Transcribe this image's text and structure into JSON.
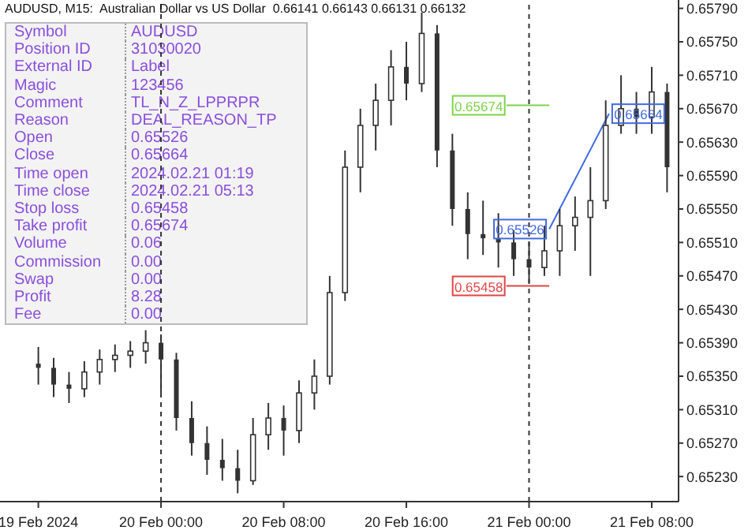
{
  "chart_data": {
    "type": "candlestick",
    "title": "AUDUSD, M15:  Australian Dollar vs US Dollar  0.66141 0.66143 0.66131 0.66132",
    "xlim": [
      "2024-02-19T13:30",
      "2024-02-21T09:45"
    ],
    "xticks": [
      {
        "value": "2024-02-19T16:00",
        "label": "19 Feb 2024"
      },
      {
        "value": "2024-02-20T00:00",
        "label": "20 Feb 00:00"
      },
      {
        "value": "2024-02-20T08:00",
        "label": "20 Feb 08:00"
      },
      {
        "value": "2024-02-20T16:00",
        "label": "20 Feb 16:00"
      },
      {
        "value": "2024-02-21T00:00",
        "label": "21 Feb 00:00"
      },
      {
        "value": "2024-02-21T08:00",
        "label": "21 Feb 08:00"
      }
    ],
    "ylim": [
      0.652,
      0.658
    ],
    "yticks": [
      {
        "value": 0.6523,
        "label": "0.65230"
      },
      {
        "value": 0.6527,
        "label": "0.65270"
      },
      {
        "value": 0.6531,
        "label": "0.65310"
      },
      {
        "value": 0.6535,
        "label": "0.65350"
      },
      {
        "value": 0.6539,
        "label": "0.65390"
      },
      {
        "value": 0.6543,
        "label": "0.65430"
      },
      {
        "value": 0.6547,
        "label": "0.65470"
      },
      {
        "value": 0.6551,
        "label": "0.65510"
      },
      {
        "value": 0.6555,
        "label": "0.65550"
      },
      {
        "value": 0.6559,
        "label": "0.65590"
      },
      {
        "value": 0.6563,
        "label": "0.65630"
      },
      {
        "value": 0.6567,
        "label": "0.65670"
      },
      {
        "value": 0.6571,
        "label": "0.65710"
      },
      {
        "value": 0.6575,
        "label": "0.65750"
      },
      {
        "value": 0.6579,
        "label": "0.65790"
      }
    ],
    "series": [
      {
        "color": "#333333",
        "x": [
          "2024-02-19T16:00",
          "2024-02-19T17:00",
          "2024-02-19T18:00",
          "2024-02-19T19:00",
          "2024-02-19T20:00",
          "2024-02-19T21:00",
          "2024-02-19T22:00",
          "2024-02-19T23:00",
          "2024-02-20T00:00",
          "2024-02-20T01:00",
          "2024-02-20T02:00",
          "2024-02-20T03:00",
          "2024-02-20T04:00",
          "2024-02-20T05:00",
          "2024-02-20T06:00",
          "2024-02-20T07:00",
          "2024-02-20T08:00",
          "2024-02-20T09:00",
          "2024-02-20T10:00",
          "2024-02-20T11:00",
          "2024-02-20T12:00",
          "2024-02-20T13:00",
          "2024-02-20T14:00",
          "2024-02-20T15:00",
          "2024-02-20T16:00",
          "2024-02-20T17:00",
          "2024-02-20T18:00",
          "2024-02-20T19:00",
          "2024-02-20T20:00",
          "2024-02-20T21:00",
          "2024-02-20T22:00",
          "2024-02-20T23:00",
          "2024-02-21T00:00",
          "2024-02-21T01:00",
          "2024-02-21T02:00",
          "2024-02-21T03:00",
          "2024-02-21T04:00",
          "2024-02-21T05:00",
          "2024-02-21T06:00",
          "2024-02-21T07:00",
          "2024-02-21T08:00",
          "2024-02-21T09:00"
        ],
        "ohlc": [
          [
            0.65365,
            0.65385,
            0.6534,
            0.6536
          ],
          [
            0.6536,
            0.65372,
            0.65325,
            0.6534
          ],
          [
            0.6534,
            0.65355,
            0.65318,
            0.65335
          ],
          [
            0.65335,
            0.65368,
            0.65325,
            0.65355
          ],
          [
            0.65355,
            0.65382,
            0.6534,
            0.6537
          ],
          [
            0.6537,
            0.65388,
            0.65355,
            0.65375
          ],
          [
            0.65375,
            0.65392,
            0.6536,
            0.6538
          ],
          [
            0.6538,
            0.65405,
            0.65365,
            0.6539
          ],
          [
            0.6539,
            0.654,
            0.6533,
            0.6537
          ],
          [
            0.6537,
            0.65378,
            0.65285,
            0.653
          ],
          [
            0.653,
            0.6532,
            0.65255,
            0.6527
          ],
          [
            0.6527,
            0.6529,
            0.65232,
            0.6525
          ],
          [
            0.6525,
            0.65275,
            0.65225,
            0.6524
          ],
          [
            0.6524,
            0.65262,
            0.6521,
            0.65225
          ],
          [
            0.65225,
            0.653,
            0.6522,
            0.6528
          ],
          [
            0.6528,
            0.65318,
            0.65262,
            0.653
          ],
          [
            0.653,
            0.65315,
            0.65255,
            0.65285
          ],
          [
            0.65285,
            0.65345,
            0.6527,
            0.6533
          ],
          [
            0.6533,
            0.6537,
            0.6531,
            0.6535
          ],
          [
            0.6535,
            0.6547,
            0.6534,
            0.6545
          ],
          [
            0.6545,
            0.6562,
            0.6544,
            0.656
          ],
          [
            0.656,
            0.6567,
            0.6557,
            0.6565
          ],
          [
            0.6565,
            0.657,
            0.6562,
            0.6568
          ],
          [
            0.6568,
            0.6574,
            0.6565,
            0.6572
          ],
          [
            0.6572,
            0.6575,
            0.6568,
            0.657
          ],
          [
            0.657,
            0.65785,
            0.6569,
            0.6576
          ],
          [
            0.6576,
            0.6577,
            0.656,
            0.6562
          ],
          [
            0.6562,
            0.6564,
            0.6553,
            0.6555
          ],
          [
            0.6555,
            0.6557,
            0.6549,
            0.6552
          ],
          [
            0.6552,
            0.6556,
            0.65495,
            0.65515
          ],
          [
            0.65515,
            0.65545,
            0.6548,
            0.6551
          ],
          [
            0.6551,
            0.65525,
            0.6547,
            0.6549
          ],
          [
            0.6549,
            0.6551,
            0.65462,
            0.6548
          ],
          [
            0.6548,
            0.6553,
            0.6547,
            0.655
          ],
          [
            0.655,
            0.6555,
            0.6547,
            0.6553
          ],
          [
            0.6553,
            0.65565,
            0.655,
            0.6554
          ],
          [
            0.6554,
            0.656,
            0.6547,
            0.6556
          ],
          [
            0.6556,
            0.6568,
            0.6555,
            0.6565
          ],
          [
            0.6565,
            0.6571,
            0.6564,
            0.6567
          ],
          [
            0.6567,
            0.6569,
            0.6564,
            0.6566
          ],
          [
            0.6566,
            0.6572,
            0.6564,
            0.6569
          ],
          [
            0.6569,
            0.657,
            0.6557,
            0.656
          ]
        ]
      },
      {
        "type": "line",
        "color": "#4169e1",
        "x": [
          "2024-02-21T01:19",
          "2024-02-21T05:13"
        ],
        "values": [
          0.65526,
          0.65664
        ]
      }
    ],
    "ref_lines": [
      {
        "axis": "x",
        "value": "2024-02-20T00:00",
        "line_style": "dashed",
        "color": "#333333"
      },
      {
        "axis": "x",
        "value": "2024-02-21T00:00",
        "line_style": "dashed",
        "color": "#333333"
      },
      {
        "axis": "y",
        "value": 0.65674,
        "label": "0.65674",
        "color": "#7fd34a"
      },
      {
        "axis": "y",
        "value": 0.65458,
        "label": "0.65458",
        "color": "#e04545"
      }
    ],
    "annotations": [
      "Symbol",
      "AUDUSD",
      "Position ID",
      "31030020",
      "External ID",
      "Label",
      "Magic",
      "123456",
      "Comment",
      "TL_N_Z_LPPRPR",
      "Reason",
      "DEAL_REASON_TP",
      "Open",
      "0.65526",
      "Close",
      "0.65664",
      "Time open",
      "2024.02.21 01:19",
      "Time close",
      "2024.02.21 05:13",
      "Stop loss",
      "0.65458",
      "Take profit",
      "0.65674",
      "Volume",
      "0.06",
      "Commission",
      "0.00",
      "Swap",
      "0.00",
      "Profit",
      "8.28",
      "Fee",
      "0.00",
      {
        "text": "0.65526",
        "x": "2024-02-21T01:19",
        "y": 0.65526
      },
      {
        "text": "0.65664",
        "x": "2024-02-21T05:13",
        "y": 0.65664
      }
    ]
  }
}
